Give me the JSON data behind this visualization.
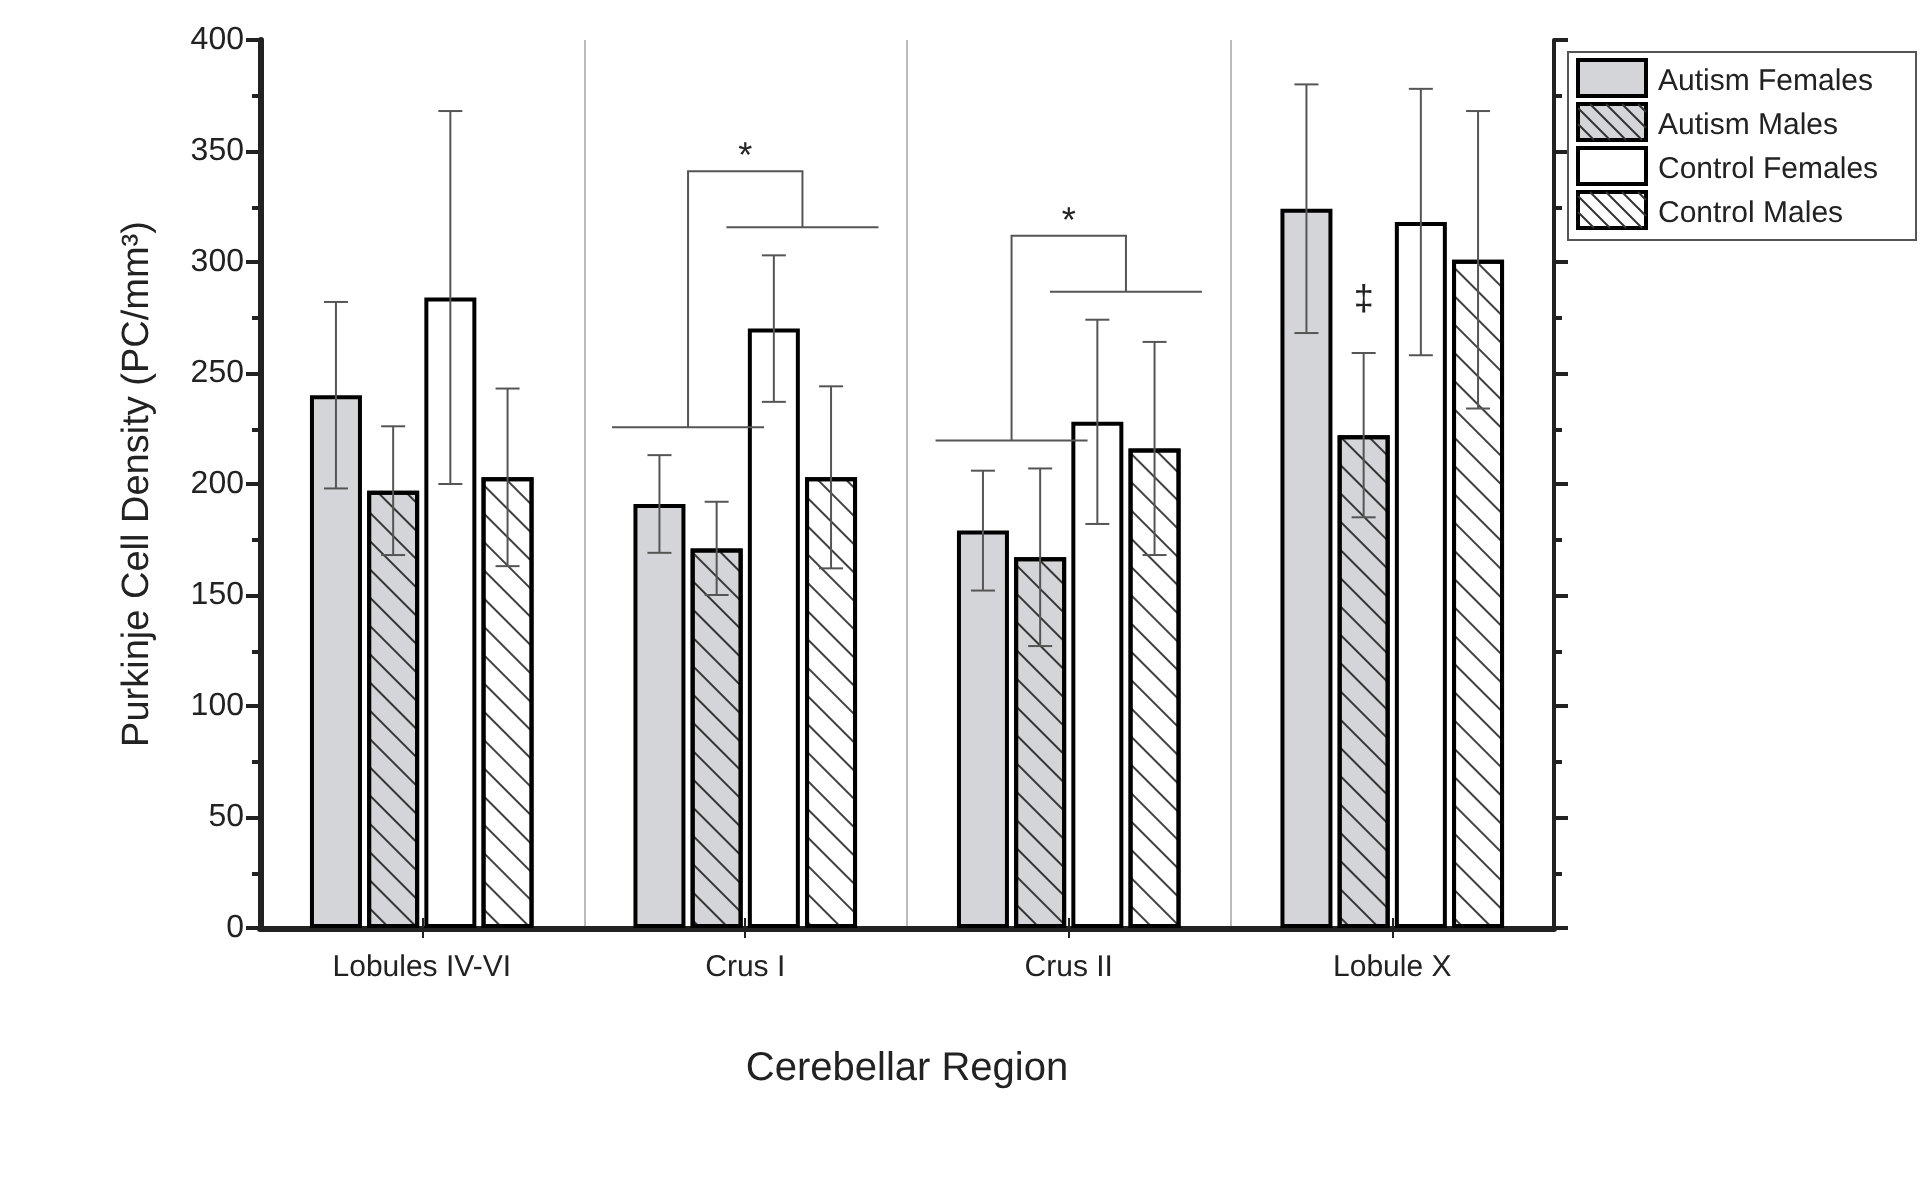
{
  "chart_data": {
    "type": "bar",
    "xlabel": "Cerebellar Region",
    "ylabel": "Purkinje Cell Density (PC/mm³)",
    "categories": [
      "Lobules IV-VI",
      "Crus I",
      "Crus II",
      "Lobule X"
    ],
    "series": [
      {
        "name": "Autism Females",
        "color": "#d4d5d9",
        "values": [
          240,
          191,
          179,
          324
        ],
        "errors": [
          42,
          22,
          27,
          56
        ]
      },
      {
        "name": "Autism Males",
        "color": "#d4d5d9",
        "values": [
          197,
          171,
          167,
          222
        ],
        "errors": [
          29,
          21,
          40,
          37
        ]
      },
      {
        "name": "Control Females",
        "color": "#ffffff",
        "values": [
          284,
          270,
          228,
          318
        ],
        "errors": [
          84,
          33,
          46,
          60
        ]
      },
      {
        "name": "Control Males",
        "color": "#ffffff",
        "values": [
          203,
          203,
          216,
          301
        ],
        "errors": [
          40,
          41,
          48,
          67
        ]
      }
    ],
    "ylim": [
      0,
      400
    ],
    "yticks": [
      0,
      50,
      100,
      150,
      200,
      250,
      300,
      350,
      400
    ],
    "annotations": [
      "*",
      "*",
      {
        "text": "‡",
        "x": "Lobule X",
        "y": 284
      }
    ],
    "grid": "x",
    "legend": "top right"
  }
}
